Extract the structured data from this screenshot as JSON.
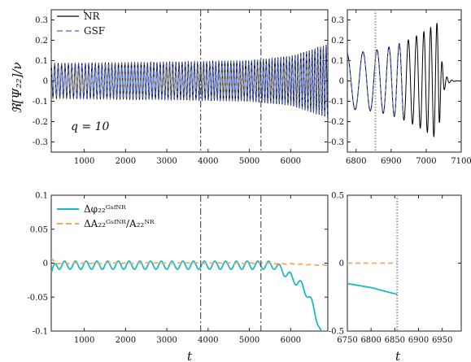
{
  "chart_data": [
    {
      "id": "tl",
      "type": "line",
      "ylabel": "ℜ[Ψ₂₂]/ν",
      "xlim": [
        200,
        6900
      ],
      "ylim": [
        -0.35,
        0.35
      ],
      "xticks": [
        "1000",
        "2000",
        "3000",
        "4000",
        "5000",
        "6000"
      ],
      "xtick_values": [
        1000,
        2000,
        3000,
        4000,
        5000,
        6000
      ],
      "yticks": [
        "0.3",
        "0.2",
        "0.1",
        "0",
        "-0.1",
        "-0.2",
        "-0.3"
      ],
      "ytick_values": [
        0.3,
        0.2,
        0.1,
        0,
        -0.1,
        -0.2,
        -0.3
      ],
      "vlines": [
        3820,
        5280
      ],
      "annotation": "q = 10",
      "series": [
        {
          "name": "NR",
          "color": "#000000",
          "style": "solid"
        },
        {
          "name": "GSF",
          "color": "#4a63d8",
          "style": "dashed"
        }
      ],
      "envelope": {
        "t": [
          200,
          3000,
          5000,
          6000,
          6900
        ],
        "amplitude": [
          0.085,
          0.092,
          0.1,
          0.12,
          0.18
        ]
      },
      "cycles": 80
    },
    {
      "id": "tr",
      "type": "line",
      "xlim": [
        6775,
        7100
      ],
      "ylim": [
        -0.35,
        0.35
      ],
      "xticks": [
        "6800",
        "6900",
        "7000",
        "7100"
      ],
      "xtick_values": [
        6800,
        6900,
        7000,
        7100
      ],
      "yticks": [
        "0.3",
        "0.2",
        "0.1",
        "0",
        "-0.1",
        "-0.2",
        "-0.3"
      ],
      "ytick_values": [
        0.3,
        0.2,
        0.1,
        0,
        -0.1,
        -0.2,
        -0.3
      ],
      "vline_dotted": 6855,
      "series": [
        {
          "name": "NR",
          "color": "#000000",
          "style": "solid"
        },
        {
          "name": "GSF",
          "color": "#4a63d8",
          "style": "dashed"
        }
      ]
    },
    {
      "id": "bl",
      "type": "line",
      "xlabel": "t",
      "xlim": [
        200,
        6900
      ],
      "ylim": [
        -0.1,
        0.1
      ],
      "xticks": [
        "1000",
        "2000",
        "3000",
        "4000",
        "5000",
        "6000"
      ],
      "xtick_values": [
        1000,
        2000,
        3000,
        4000,
        5000,
        6000
      ],
      "yticks": [
        "0.1",
        "0.05",
        "0",
        "-0.05",
        "-0.1"
      ],
      "ytick_values": [
        0.1,
        0.05,
        0,
        -0.05,
        -0.1
      ],
      "vlines": [
        3820,
        5280
      ],
      "series": [
        {
          "name": "Δφ₂₂ᴳˢᶠᴺᴿ",
          "color": "#1fb8c3",
          "style": "solid"
        },
        {
          "name": "ΔA₂₂ᴳˢᶠᴺᴿ/A₂₂ᴺᴿ",
          "color": "#f4a95e",
          "style": "dashed"
        }
      ]
    },
    {
      "id": "br",
      "type": "line",
      "xlabel": "t",
      "xlim": [
        6750,
        6990
      ],
      "ylim": [
        -0.5,
        0.5
      ],
      "xticks": [
        "6750",
        "6800",
        "6850",
        "6900",
        "6950"
      ],
      "xtick_values": [
        6750,
        6800,
        6850,
        6900,
        6950
      ],
      "yticks": [
        "0.5",
        "0",
        "-0.5"
      ],
      "ytick_values": [
        0.5,
        0,
        -0.5
      ],
      "vline_dotted": 6855,
      "series": [
        {
          "name": "Δφ",
          "color": "#1fb8c3",
          "style": "solid",
          "x": [
            6750,
            6800,
            6855
          ],
          "y": [
            -0.15,
            -0.18,
            -0.23
          ]
        },
        {
          "name": "ΔA/A",
          "color": "#f4a95e",
          "style": "dashed",
          "x": [
            6750,
            6855
          ],
          "y": [
            0.0,
            0.0
          ]
        }
      ]
    }
  ]
}
